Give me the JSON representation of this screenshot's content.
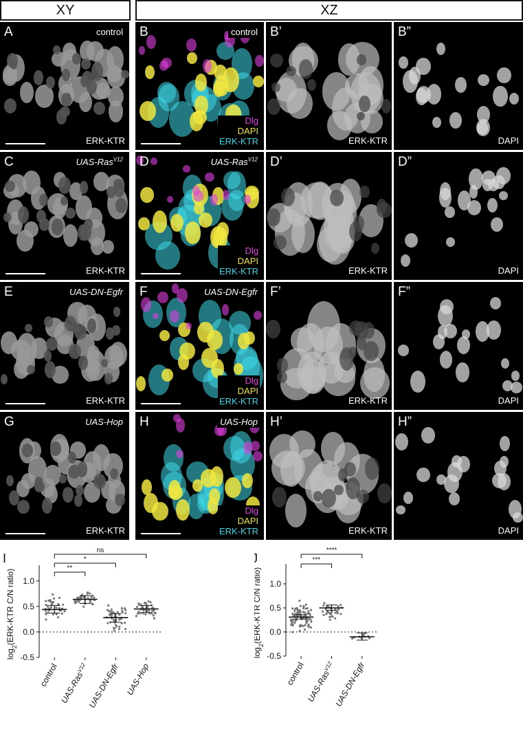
{
  "headers": {
    "xy": "XY",
    "xz": "XZ"
  },
  "rows": [
    {
      "xy_label": "A",
      "xz_label": "B",
      "cond_plain": "control",
      "cond_sup": "",
      "cond_italic": false,
      "p1": "B’",
      "p2": "B”"
    },
    {
      "xy_label": "C",
      "xz_label": "D",
      "cond_plain": "UAS-Ras",
      "cond_sup": "V12",
      "cond_italic": true,
      "p1": "D’",
      "p2": "D”"
    },
    {
      "xy_label": "E",
      "xz_label": "F",
      "cond_plain": "UAS-DN-Egfr",
      "cond_sup": "",
      "cond_italic": true,
      "p1": "F’",
      "p2": "F”"
    },
    {
      "xy_label": "G",
      "xz_label": "H",
      "cond_plain": "UAS-Hop",
      "cond_sup": "",
      "cond_italic": true,
      "p1": "H’",
      "p2": "H”"
    }
  ],
  "channels": {
    "erk": "ERK-KTR",
    "dapi": "DAPI",
    "dlg": "Dlg"
  },
  "colors": {
    "dlg": "#e040e0",
    "dapi": "#f0e640",
    "erk": "#40d8e8"
  },
  "chart_data": [
    {
      "panel_label": "I",
      "type": "scatter",
      "ylabel": "log2(ERK-KTR C/N ratio)",
      "ylim": [
        -0.5,
        1.2
      ],
      "yticks": [
        "1.0",
        "0.5",
        "0.0",
        "-0.5"
      ],
      "categories": [
        "control",
        "UAS-RasV12",
        "UAS-DN-Egfr",
        "UAS-Hop"
      ],
      "means": [
        0.44,
        0.64,
        0.28,
        0.45
      ],
      "ci": [
        [
          0.37,
          0.52
        ],
        [
          0.56,
          0.71
        ],
        [
          0.19,
          0.36
        ],
        [
          0.38,
          0.52
        ]
      ],
      "spread": [
        [
          0.0,
          1.0
        ],
        [
          0.3,
          1.0
        ],
        [
          -0.4,
          0.9
        ],
        [
          0.05,
          0.85
        ]
      ],
      "n": [
        40,
        38,
        45,
        40
      ],
      "significance": [
        {
          "from": 0,
          "to": 1,
          "label": "**"
        },
        {
          "from": 0,
          "to": 2,
          "label": "*"
        },
        {
          "from": 0,
          "to": 3,
          "label": "ns"
        }
      ]
    },
    {
      "panel_label": "J",
      "type": "scatter",
      "ylabel": "log2(ERK-KTR C/N ratio)",
      "ylim": [
        -0.5,
        1.3
      ],
      "yticks": [
        "1.0",
        "0.5",
        "0.0",
        "-0.5"
      ],
      "categories": [
        "control",
        "UAS-RasV12",
        "UAS-DN-Egfr"
      ],
      "means": [
        0.31,
        0.5,
        -0.1
      ],
      "ci": [
        [
          0.27,
          0.36
        ],
        [
          0.45,
          0.56
        ],
        [
          -0.17,
          -0.02
        ]
      ],
      "spread": [
        [
          -0.35,
          0.92
        ],
        [
          -0.05,
          0.75
        ],
        [
          -0.22,
          0.06
        ]
      ],
      "n": [
        90,
        35,
        10
      ],
      "significance": [
        {
          "from": 0,
          "to": 1,
          "label": "***"
        },
        {
          "from": 0,
          "to": 2,
          "label": "****"
        }
      ]
    }
  ]
}
